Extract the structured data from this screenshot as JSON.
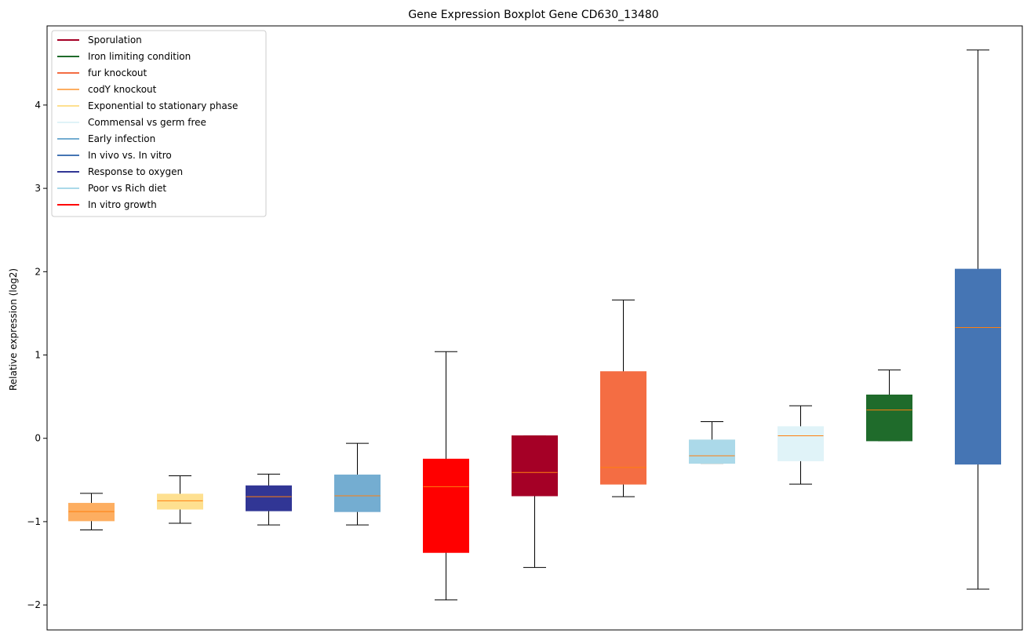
{
  "chart_data": {
    "type": "boxplot",
    "title": "Gene Expression Boxplot Gene CD630_13480",
    "xlabel": "",
    "ylabel": "Relative expression (log2)",
    "ylim": [
      -2.3,
      4.95
    ],
    "yticks": [
      -2,
      -1,
      0,
      1,
      2,
      3,
      4
    ],
    "ytick_labels": [
      "−2",
      "−1",
      "0",
      "1",
      "2",
      "3",
      "4"
    ],
    "legend_position": "top-left",
    "median_color": "#ff7f0e",
    "legend": [
      {
        "label": "Sporulation",
        "color": "#a50026"
      },
      {
        "label": "Iron limiting condition",
        "color": "#1f6b2b"
      },
      {
        "label": "fur knockout",
        "color": "#f46d43"
      },
      {
        "label": "codY knockout",
        "color": "#fdae61"
      },
      {
        "label": "Exponential to stationary phase",
        "color": "#fee090"
      },
      {
        "label": "Commensal vs germ free",
        "color": "#e0f3f8"
      },
      {
        "label": "Early infection",
        "color": "#74add1"
      },
      {
        "label": "In vivo vs. In vitro",
        "color": "#4575b4"
      },
      {
        "label": "Response to oxygen",
        "color": "#313695"
      },
      {
        "label": "Poor vs Rich diet",
        "color": "#abd9e9"
      },
      {
        "label": "In vitro growth",
        "color": "#ff0000"
      }
    ],
    "boxes": [
      {
        "name": "codY knockout",
        "color": "#fdae61",
        "whislo": -1.1,
        "q1": -0.99,
        "med": -0.88,
        "q3": -0.78,
        "whishi": -0.66
      },
      {
        "name": "Exponential to stationary phase",
        "color": "#fee090",
        "whislo": -1.02,
        "q1": -0.85,
        "med": -0.75,
        "q3": -0.67,
        "whishi": -0.45
      },
      {
        "name": "Response to oxygen",
        "color": "#313695",
        "whislo": -1.04,
        "q1": -0.87,
        "med": -0.7,
        "q3": -0.57,
        "whishi": -0.43
      },
      {
        "name": "Early infection",
        "color": "#74add1",
        "whislo": -1.04,
        "q1": -0.88,
        "med": -0.69,
        "q3": -0.44,
        "whishi": -0.06
      },
      {
        "name": "In vitro growth",
        "color": "#ff0000",
        "whislo": -1.94,
        "q1": -1.37,
        "med": -0.58,
        "q3": -0.25,
        "whishi": 1.04
      },
      {
        "name": "Sporulation",
        "color": "#a50026",
        "whislo": -1.55,
        "q1": -0.69,
        "med": -0.41,
        "q3": 0.03,
        "whishi": 0.03
      },
      {
        "name": "fur knockout",
        "color": "#f46d43",
        "whislo": -0.7,
        "q1": -0.55,
        "med": -0.35,
        "q3": 0.8,
        "whishi": 1.66
      },
      {
        "name": "Poor vs Rich diet",
        "color": "#abd9e9",
        "whislo": -0.3,
        "q1": -0.3,
        "med": -0.21,
        "q3": -0.02,
        "whishi": 0.2
      },
      {
        "name": "Commensal vs germ free",
        "color": "#e0f3f8",
        "whislo": -0.55,
        "q1": -0.27,
        "med": 0.03,
        "q3": 0.14,
        "whishi": 0.39
      },
      {
        "name": "Iron limiting condition",
        "color": "#1f6b2b",
        "whislo": -0.03,
        "q1": -0.03,
        "med": 0.34,
        "q3": 0.52,
        "whishi": 0.82
      },
      {
        "name": "In vivo vs. In vitro",
        "color": "#4575b4",
        "whislo": -1.81,
        "q1": -0.31,
        "med": 1.33,
        "q3": 2.03,
        "whishi": 4.66
      }
    ]
  }
}
